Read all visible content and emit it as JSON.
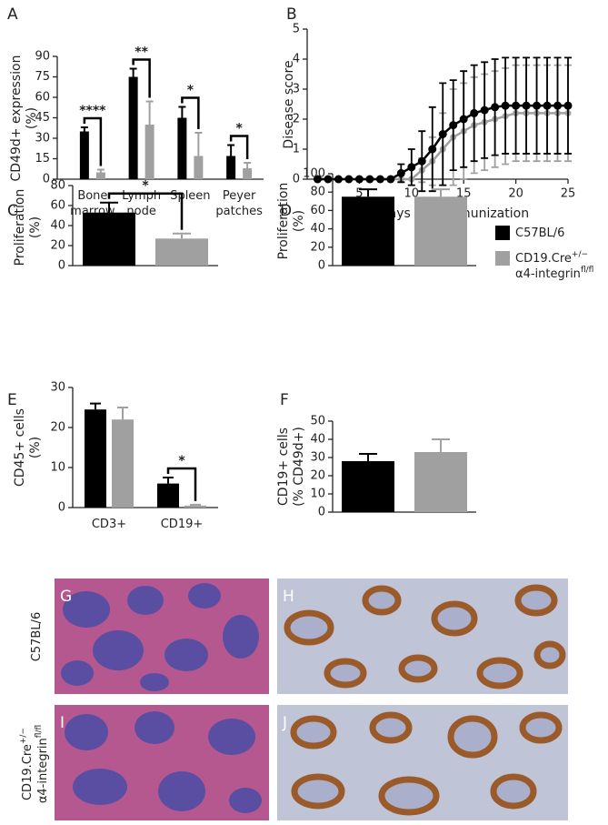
{
  "chart_data": [
    {
      "type": "bar",
      "letter": "A",
      "y_label": [
        "CD49d+ expression",
        "(%)"
      ],
      "categories": [
        "Bone marrow",
        "Lymph node",
        "Spleen",
        "Peyer patches"
      ],
      "series": [
        {
          "color": "#000000",
          "values": [
            35,
            75,
            45,
            17
          ],
          "errors": [
            3,
            6,
            8,
            8
          ]
        },
        {
          "color": "#a0a0a0",
          "values": [
            5,
            40,
            17,
            8
          ],
          "errors": [
            2,
            17,
            17,
            4
          ]
        }
      ],
      "significance": [
        "****",
        "**",
        "*",
        "*"
      ],
      "ylim": [
        0,
        90
      ],
      "yticks": [
        0,
        15,
        30,
        45,
        60,
        75,
        90
      ]
    },
    {
      "type": "line",
      "letter": "B",
      "y_label": [
        "Disease score"
      ],
      "x_label": "Days postimmunization",
      "x": [
        1,
        2,
        3,
        4,
        5,
        6,
        7,
        8,
        9,
        10,
        11,
        12,
        13,
        14,
        15,
        16,
        17,
        18,
        19,
        20,
        21,
        22,
        23,
        24,
        25
      ],
      "series": [
        {
          "color": "#000000",
          "values": [
            0,
            0,
            0,
            0,
            0,
            0,
            0,
            0,
            0.2,
            0.4,
            0.6,
            1.0,
            1.5,
            1.8,
            2.0,
            2.2,
            2.3,
            2.4,
            2.45,
            2.45,
            2.45,
            2.45,
            2.45,
            2.45,
            2.45
          ],
          "errors": [
            0,
            0,
            0,
            0,
            0,
            0,
            0,
            0,
            0.3,
            0.6,
            1.0,
            1.4,
            1.7,
            1.5,
            1.6,
            1.6,
            1.6,
            1.6,
            1.6,
            1.6,
            1.6,
            1.6,
            1.6,
            1.6,
            1.6
          ]
        },
        {
          "color": "#a0a0a0",
          "values": [
            0,
            0,
            0,
            0,
            0,
            0,
            0,
            0,
            0,
            0,
            0.3,
            0.6,
            1.0,
            1.4,
            1.6,
            1.8,
            1.9,
            2.0,
            2.1,
            2.2,
            2.2,
            2.2,
            2.2,
            2.2,
            2.2
          ],
          "errors": [
            0,
            0,
            0,
            0,
            0,
            0,
            0,
            0,
            0,
            0,
            0.4,
            0.8,
            1.2,
            1.6,
            1.6,
            1.6,
            1.6,
            1.6,
            1.6,
            1.6,
            1.6,
            1.6,
            1.6,
            1.6,
            1.6
          ]
        }
      ],
      "xlim": [
        0,
        25
      ],
      "xticks": [
        5,
        10,
        15,
        20,
        25
      ],
      "ylim": [
        0,
        5
      ],
      "yticks": [
        0,
        1,
        2,
        3,
        4,
        5
      ]
    },
    {
      "type": "bar",
      "letter": "C",
      "y_label": [
        "Proliferation",
        "(%)"
      ],
      "series": [
        {
          "color": "#000000",
          "values": [
            53
          ],
          "errors": [
            10
          ]
        },
        {
          "color": "#a0a0a0",
          "values": [
            27
          ],
          "errors": [
            5
          ]
        }
      ],
      "significance": [
        "*"
      ],
      "ylim": [
        0,
        80
      ],
      "yticks": [
        0,
        20,
        40,
        60,
        80
      ]
    },
    {
      "type": "bar",
      "letter": "D",
      "y_label": [
        "Proliferation",
        "(%)"
      ],
      "series": [
        {
          "color": "#000000",
          "values": [
            75
          ],
          "errors": [
            8
          ]
        },
        {
          "color": "#a0a0a0",
          "values": [
            75
          ],
          "errors": [
            8
          ]
        }
      ],
      "ylim": [
        0,
        100
      ],
      "yticks": [
        0,
        20,
        40,
        60,
        80,
        100
      ]
    },
    {
      "type": "bar",
      "letter": "E",
      "y_label": [
        "CD45+ cells",
        "(%)"
      ],
      "categories": [
        "CD3+",
        "CD19+"
      ],
      "series": [
        {
          "color": "#000000",
          "values": [
            24.5,
            6
          ],
          "errors": [
            1.5,
            1.5
          ]
        },
        {
          "color": "#a0a0a0",
          "values": [
            22,
            0.5
          ],
          "errors": [
            3,
            0.2
          ]
        }
      ],
      "significance": [
        null,
        "*"
      ],
      "ylim": [
        0,
        30
      ],
      "yticks": [
        0,
        10,
        20,
        30
      ]
    },
    {
      "type": "bar",
      "letter": "F",
      "y_label": [
        "CD19+ cells",
        "(% CD49d+)"
      ],
      "series": [
        {
          "color": "#000000",
          "values": [
            28
          ],
          "errors": [
            4
          ]
        },
        {
          "color": "#a0a0a0",
          "values": [
            33
          ],
          "errors": [
            7
          ]
        }
      ],
      "ylim": [
        0,
        50
      ],
      "yticks": [
        0,
        10,
        20,
        30,
        40,
        50
      ]
    }
  ],
  "legend": [
    {
      "color": "#000000",
      "lines": [
        [
          "C57BL/6"
        ]
      ]
    },
    {
      "color": "#a0a0a0",
      "lines": [
        [
          "CD19.Cre",
          "+/−"
        ],
        [
          "α4-integrin",
          "fl/fl"
        ]
      ]
    }
  ],
  "images": [
    {
      "letter": "G"
    },
    {
      "letter": "H"
    },
    {
      "letter": "I"
    },
    {
      "letter": "J"
    }
  ],
  "row_labels": [
    {
      "lines": [
        [
          "C57BL/6"
        ]
      ]
    },
    {
      "lines": [
        [
          "CD19.Cre",
          "+/−"
        ],
        [
          "α4-integrin",
          "fl/fl"
        ]
      ]
    }
  ]
}
